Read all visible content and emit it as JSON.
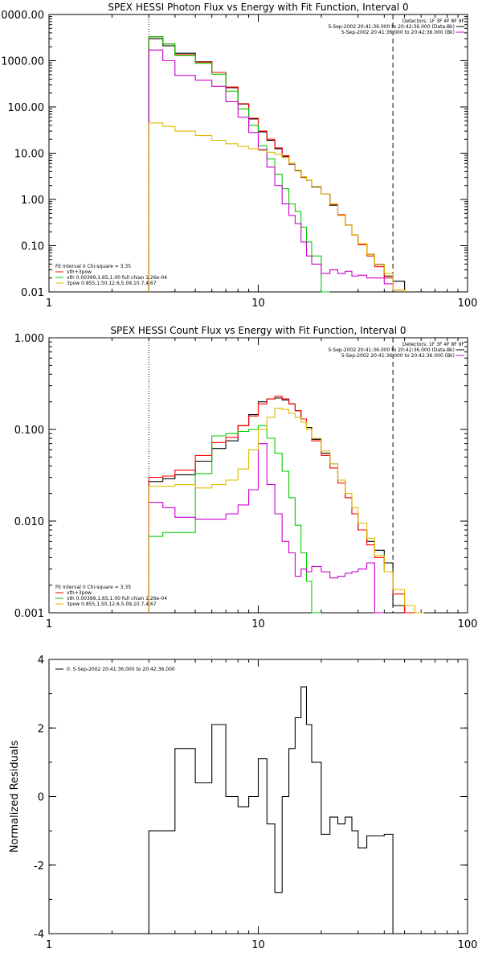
{
  "chart_data": [
    {
      "type": "line",
      "title": "SPEX HESSI Photon Flux vs Energy with Fit Function, Interval 0",
      "xlabel": "",
      "ylabel": "",
      "xscale": "log",
      "yscale": "log",
      "xlim": [
        1,
        100
      ],
      "ylim": [
        0.01,
        10000
      ],
      "xticks": [
        "1",
        "10",
        "100"
      ],
      "yticks": [
        "10000.00",
        "1000.00",
        "100.00",
        "10.00",
        "1.00",
        "0.10",
        "0.01"
      ],
      "vlines": [
        {
          "x": 3.0,
          "style": "dotted",
          "color": "#000000"
        },
        {
          "x": 44.0,
          "style": "dashed",
          "color": "#000000"
        }
      ],
      "legend_top": {
        "placement": "top-right",
        "header": "Detectors: 1F 3F 4F 8F 9F",
        "entries": [
          {
            "text": "5-Sep-2002 20:41:36.000 to 20:42:36.000 (Data-Bk)",
            "color": "#000000"
          },
          {
            "text": "5-Sep-2002 20:41:36.000 to 20:42:36.000 (Bk)",
            "color": "#cc00cc"
          }
        ]
      },
      "legend_bottom": {
        "placement": "bottom-left",
        "header": "Fit Interval 0   Chi-square = 3.35",
        "entries": [
          {
            "text": "vth+3pow",
            "color": "#ff0000"
          },
          {
            "text": "vth 0.00399,1.65,1.00   full chian 1.26e-04",
            "color": "#00cc00"
          },
          {
            "text": "3pow 0.855,1.50,12.6,5.09,10.7,4.67",
            "color": "#ddbb00"
          }
        ]
      },
      "edges": [
        3.0,
        3.5,
        4.0,
        5.0,
        6.0,
        7.0,
        8.0,
        9.0,
        10.0,
        11.0,
        12.0,
        13.0,
        14.0,
        15.0,
        16.0,
        17.0,
        18.0,
        20.0,
        22.0,
        24.0,
        26.0,
        28.0,
        30.0,
        33.0,
        36.0,
        40.0,
        44.0,
        50.0
      ],
      "series": [
        {
          "color": "#000000",
          "values": [
            3000,
            2100,
            1450,
            950,
            560,
            260,
            115,
            55,
            29,
            19,
            12.5,
            8.5,
            5.8,
            4.2,
            3.0,
            2.6,
            1.85,
            1.3,
            0.75,
            0.45,
            0.28,
            0.17,
            0.11,
            0.065,
            0.039,
            0.022,
            0.017
          ]
        },
        {
          "color": "#ff0000",
          "values": [
            3300,
            2300,
            1350,
            930,
            560,
            270,
            118,
            57,
            30,
            20,
            13,
            8.8,
            6.0,
            4.3,
            3.05,
            2.6,
            1.9,
            1.3,
            0.78,
            0.47,
            0.28,
            0.17,
            0.105,
            0.06,
            0.035,
            0.02,
            0.011
          ]
        },
        {
          "color": "#00cc00",
          "values": [
            3300,
            2300,
            1300,
            880,
            510,
            220,
            90,
            40,
            14.5,
            7.5,
            3.5,
            1.7,
            0.8,
            0.55,
            0.25,
            0.12,
            0.06,
            0.01
          ]
        },
        {
          "color": "#cc00cc",
          "values": [
            1700,
            1000,
            480,
            380,
            280,
            130,
            60,
            28,
            12,
            5.0,
            2.0,
            0.8,
            0.45,
            0.3,
            0.12,
            0.06,
            0.04,
            0.025,
            0.03,
            0.025,
            0.028,
            0.022,
            0.023,
            0.02,
            0.02,
            0.015,
            0.011
          ]
        },
        {
          "color": "#ddbb00",
          "values": [
            45,
            38,
            30,
            24,
            19,
            16,
            14,
            12.5,
            11.5,
            10.5,
            9.5,
            8.0,
            6.0,
            4.3,
            3.1,
            2.6,
            1.9,
            1.3,
            0.8,
            0.45,
            0.28,
            0.17,
            0.11,
            0.065,
            0.04,
            0.025,
            0.011
          ]
        }
      ]
    },
    {
      "type": "line",
      "title": "SPEX HESSI Count Flux vs Energy with Fit Function, Interval 0",
      "xlabel": "",
      "ylabel": "",
      "xscale": "log",
      "yscale": "log",
      "xlim": [
        1,
        100
      ],
      "ylim": [
        0.001,
        1.0
      ],
      "xticks": [
        "1",
        "10",
        "100"
      ],
      "yticks": [
        "1.000",
        "0.100",
        "0.010",
        "0.001"
      ],
      "vlines": [
        {
          "x": 3.0,
          "style": "dotted",
          "color": "#000000"
        },
        {
          "x": 44.0,
          "style": "dashed",
          "color": "#000000"
        }
      ],
      "legend_top": {
        "placement": "top-right",
        "header": "Detectors: 1F 3F 4F 8F 9F",
        "entries": [
          {
            "text": "5-Sep-2002 20:41:36.000 to 20:42:36.000 (Data-Bk)",
            "color": "#000000"
          },
          {
            "text": "5-Sep-2002 20:41:36.000 to 20:42:36.000 (Bk)",
            "color": "#cc00cc"
          }
        ]
      },
      "legend_bottom": {
        "placement": "bottom-left",
        "header": "Fit Interval 0   Chi-square = 3.35",
        "entries": [
          {
            "text": "vth+3pow",
            "color": "#ff0000"
          },
          {
            "text": "vth 0.00399,1.65,1.00   full chian 1.26e-04",
            "color": "#00cc00"
          },
          {
            "text": "3pow 0.855,1.50,12.6,5.09,10.7,4.67",
            "color": "#ddbb00"
          }
        ]
      },
      "edges": [
        3.0,
        3.5,
        4.0,
        5.0,
        6.0,
        7.0,
        8.0,
        9.0,
        10.0,
        11.0,
        12.0,
        13.0,
        14.0,
        15.0,
        16.0,
        17.0,
        18.0,
        20.0,
        22.0,
        24.0,
        26.0,
        28.0,
        30.0,
        33.0,
        36.0,
        40.0,
        44.0,
        50.0,
        56.0,
        62.0
      ],
      "series": [
        {
          "color": "#000000",
          "values": [
            0.027,
            0.029,
            0.032,
            0.045,
            0.062,
            0.075,
            0.11,
            0.145,
            0.2,
            0.215,
            0.22,
            0.21,
            0.19,
            0.16,
            0.13,
            0.105,
            0.078,
            0.055,
            0.042,
            0.028,
            0.018,
            0.012,
            0.008,
            0.006,
            0.0048,
            0.0035,
            0.0012
          ]
        },
        {
          "color": "#ff0000",
          "values": [
            0.03,
            0.031,
            0.036,
            0.052,
            0.072,
            0.082,
            0.11,
            0.14,
            0.19,
            0.215,
            0.23,
            0.215,
            0.19,
            0.16,
            0.13,
            0.1,
            0.075,
            0.052,
            0.038,
            0.026,
            0.018,
            0.012,
            0.008,
            0.0055,
            0.004,
            0.0028,
            0.0016,
            0.001
          ]
        },
        {
          "color": "#00cc00",
          "values": [
            0.0068,
            0.0075,
            0.0075,
            0.033,
            0.085,
            0.09,
            0.095,
            0.1,
            0.11,
            0.08,
            0.055,
            0.035,
            0.018,
            0.009,
            0.0045,
            0.0022,
            0.001
          ]
        },
        {
          "color": "#cc00cc",
          "values": [
            0.016,
            0.014,
            0.011,
            0.0105,
            0.0105,
            0.012,
            0.015,
            0.022,
            0.07,
            0.025,
            0.012,
            0.006,
            0.0045,
            0.0025,
            0.003,
            0.0028,
            0.0032,
            0.0028,
            0.0024,
            0.0025,
            0.0027,
            0.0028,
            0.003,
            0.0035,
            0.001
          ]
        },
        {
          "color": "#ddbb00",
          "values": [
            0.024,
            0.024,
            0.025,
            0.023,
            0.025,
            0.028,
            0.037,
            0.06,
            0.1,
            0.135,
            0.17,
            0.165,
            0.15,
            0.135,
            0.12,
            0.1,
            0.08,
            0.058,
            0.042,
            0.028,
            0.02,
            0.014,
            0.0095,
            0.0065,
            0.0042,
            0.0028,
            0.0018,
            0.0012,
            0.001
          ]
        }
      ]
    },
    {
      "type": "line",
      "title": "",
      "xlabel": "",
      "ylabel": "Normalized Residuals",
      "xscale": "log",
      "yscale": "linear",
      "xlim": [
        1,
        100
      ],
      "ylim": [
        -4,
        4
      ],
      "xticks": [
        "1",
        "10",
        "100"
      ],
      "yticks": [
        "4",
        "2",
        "0",
        "-2",
        "-4"
      ],
      "legend": {
        "placement": "top-left",
        "entries": [
          {
            "text": "0. 5-Sep-2002 20:41:36.000 to 20:42:36.000",
            "color": "#000000"
          }
        ]
      },
      "edges": [
        3.0,
        3.5,
        4.0,
        5.0,
        6.0,
        7.0,
        8.0,
        9.0,
        10.0,
        11.0,
        12.0,
        13.0,
        14.0,
        15.0,
        16.0,
        17.0,
        18.0,
        20.0,
        22.0,
        24.0,
        26.0,
        28.0,
        30.0,
        33.0,
        36.0,
        40.0,
        44.0
      ],
      "series": [
        {
          "color": "#000000",
          "values": [
            -1.0,
            -1.0,
            1.4,
            0.4,
            2.1,
            0.0,
            -0.3,
            0.0,
            1.1,
            -0.8,
            -2.8,
            0.0,
            1.4,
            2.3,
            3.2,
            2.1,
            1.0,
            -1.1,
            -0.6,
            -0.8,
            -0.6,
            -1.0,
            -1.5,
            -1.15,
            -1.15,
            -1.1
          ]
        }
      ]
    }
  ]
}
